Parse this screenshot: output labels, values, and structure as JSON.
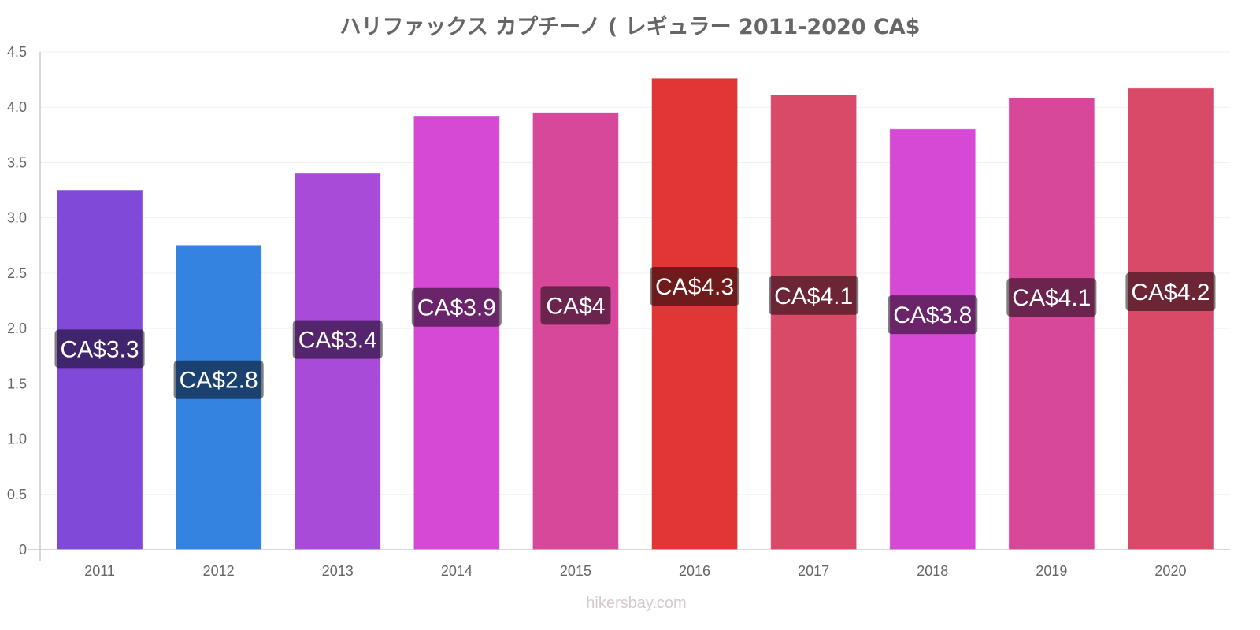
{
  "chart_data": {
    "type": "bar",
    "title": "ハリファックス カプチーノ ( レギュラー 2011-2020 CA$",
    "xlabel": "",
    "ylabel": "",
    "ylim": [
      0,
      4.5
    ],
    "yticks": [
      0,
      0.5,
      1.0,
      1.5,
      2.0,
      2.5,
      3.0,
      3.5,
      4.0,
      4.5
    ],
    "ytick_labels": [
      "0",
      "0.5",
      "1.0",
      "1.5",
      "2.0",
      "2.5",
      "3.0",
      "3.5",
      "4.0",
      "4.5"
    ],
    "grid": true,
    "categories": [
      "2011",
      "2012",
      "2013",
      "2014",
      "2015",
      "2016",
      "2017",
      "2018",
      "2019",
      "2020"
    ],
    "values": [
      3.25,
      2.75,
      3.4,
      3.92,
      3.95,
      4.26,
      4.11,
      3.8,
      4.08,
      4.17
    ],
    "data_labels": [
      "CA$3.3",
      "CA$2.8",
      "CA$3.4",
      "CA$3.9",
      "CA$4",
      "CA$4.3",
      "CA$4.1",
      "CA$3.8",
      "CA$4.1",
      "CA$4.2"
    ],
    "colors": [
      "#8049d8",
      "#3583e0",
      "#a84bd8",
      "#d549d4",
      "#d7489a",
      "#e03636",
      "#d84a68",
      "#d549d4",
      "#d7489a",
      "#d84a68"
    ]
  },
  "watermark": "hikersbay.com"
}
